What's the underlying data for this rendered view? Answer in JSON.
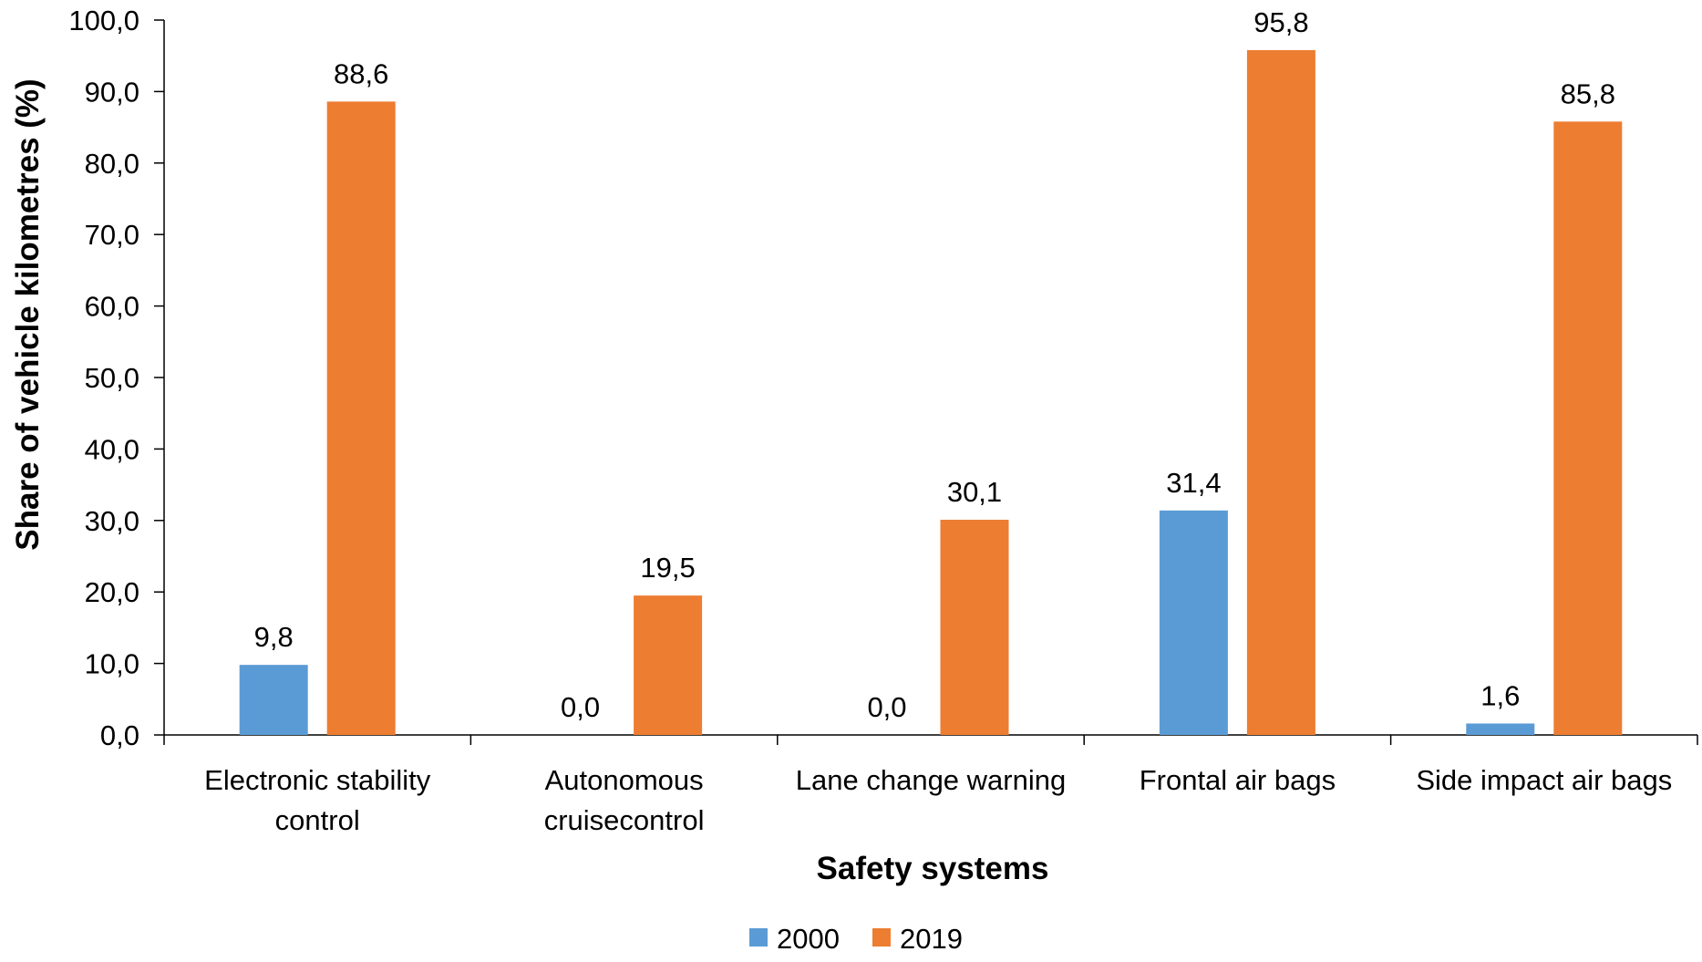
{
  "chart_data": {
    "type": "bar",
    "title": "",
    "xlabel": "Safety systems",
    "ylabel": "Share of vehicle kilometres (%)",
    "ylim": [
      0,
      100
    ],
    "ytick_step": 10,
    "ytick_labels": [
      "0,0",
      "10,0",
      "20,0",
      "30,0",
      "40,0",
      "50,0",
      "60,0",
      "70,0",
      "80,0",
      "90,0",
      "100,0"
    ],
    "categories": [
      [
        "Electronic stability",
        "control"
      ],
      [
        "Autonomous",
        "cruisecontrol"
      ],
      [
        "Lane change warning"
      ],
      [
        "Frontal air bags"
      ],
      [
        "Side impact air bags"
      ]
    ],
    "series": [
      {
        "name": "2000",
        "color": "#5B9BD5",
        "values": [
          9.8,
          0.0,
          0.0,
          31.4,
          1.6
        ],
        "labels": [
          "9,8",
          "0,0",
          "0,0",
          "31,4",
          "1,6"
        ]
      },
      {
        "name": "2019",
        "color": "#ED7D31",
        "values": [
          88.6,
          19.5,
          30.1,
          95.8,
          85.8
        ],
        "labels": [
          "88,6",
          "19,5",
          "30,1",
          "95,8",
          "85,8"
        ]
      }
    ],
    "grid": false,
    "legend_position": "bottom-center"
  }
}
